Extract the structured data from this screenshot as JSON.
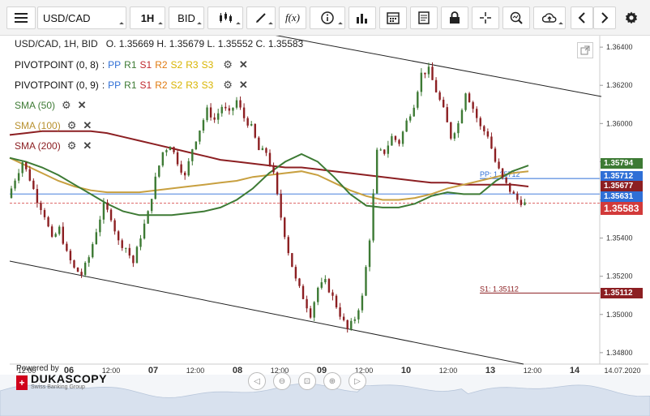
{
  "toolbar": {
    "symbol": "USD/CAD",
    "timeframe": "1H",
    "side": "BID",
    "fx_label": "f(x)"
  },
  "header": {
    "ohlc": "USD/CAD, 1H, BID   O. 1.35669 H. 1.35679 L. 1.35552 C. 1.35583"
  },
  "indicators": [
    {
      "name": "PIVOTPOINT (0, 8)",
      "sep": ":",
      "labels": [
        "PP",
        "R1",
        "S1",
        "R2",
        "S2",
        "R3",
        "S3"
      ]
    },
    {
      "name": "PIVOTPOINT (0, 9)",
      "sep": ":",
      "labels": [
        "PP",
        "R1",
        "S1",
        "R2",
        "S2",
        "R3",
        "S3"
      ]
    },
    {
      "name": "SMA (50)",
      "color": "#3d7a34"
    },
    {
      "name": "SMA (100)",
      "color": "#c8a040"
    },
    {
      "name": "SMA (200)",
      "color": "#8c1f22"
    }
  ],
  "pivot_label_colors": [
    "#2f6fd6",
    "#3d7a34",
    "#c0282d",
    "#e07a10",
    "#d8b400",
    "#d8b400",
    "#d8b400"
  ],
  "chart_annotations": {
    "pp_label": "PP: 1.35712",
    "s1_label": "S1: 1.35112"
  },
  "price_badges": [
    {
      "value": "1.35794",
      "color": "#3d7a34"
    },
    {
      "value": "1.35712",
      "color": "#2f6fd6"
    },
    {
      "value": "1.35677",
      "color": "#8c1f22"
    },
    {
      "value": "1.35631",
      "color": "#2f6fd6"
    },
    {
      "value": "1.35583",
      "color": "#d23a3a"
    },
    {
      "value": "1.35112",
      "color": "#8c1f22"
    }
  ],
  "powered_by": "Powered by",
  "brand": {
    "name": "DUKASCOPY",
    "tagline": "Swiss Banking Group",
    "cross": "+"
  },
  "chart_data": {
    "type": "candlestick",
    "title": "USD/CAD, 1H, BID",
    "ohlc_last": {
      "open": 1.35669,
      "high": 1.35679,
      "low": 1.35552,
      "close": 1.35583
    },
    "y_ticks": [
      "1.36400",
      "1.36200",
      "1.36000",
      "1.35800",
      "1.35600",
      "1.35400",
      "1.35200",
      "1.35000",
      "1.34800"
    ],
    "ylim": [
      1.3474,
      1.3646
    ],
    "x_ticks": [
      "12:00",
      "06",
      "12:00",
      "07",
      "12:00",
      "08",
      "12:00",
      "09",
      "12:00",
      "10",
      "12:00",
      "13",
      "12:00",
      "14",
      "14.07.2020"
    ],
    "x_tick_days": [
      false,
      true,
      false,
      true,
      false,
      true,
      false,
      true,
      false,
      true,
      false,
      true,
      false,
      true,
      false
    ],
    "levels": {
      "pp": 1.35712,
      "s1": 1.35112,
      "last": 1.35583,
      "pp_prev": 1.35631
    },
    "price_path": [
      1.3561,
      1.3571,
      1.358,
      1.3571,
      1.356,
      1.3552,
      1.3539,
      1.3545,
      1.3532,
      1.3524,
      1.3521,
      1.353,
      1.3544,
      1.3557,
      1.3551,
      1.3538,
      1.3535,
      1.3527,
      1.3541,
      1.3553,
      1.3571,
      1.3585,
      1.3589,
      1.358,
      1.3572,
      1.3587,
      1.3597,
      1.3607,
      1.3602,
      1.3609,
      1.3605,
      1.3612,
      1.3603,
      1.3598,
      1.3586,
      1.3585,
      1.3573,
      1.3551,
      1.3533,
      1.3518,
      1.3509,
      1.35,
      1.3514,
      1.3517,
      1.3509,
      1.35,
      1.3492,
      1.3498,
      1.3509,
      1.354,
      1.3585,
      1.3585,
      1.3593,
      1.359,
      1.3601,
      1.361,
      1.3626,
      1.3628,
      1.3617,
      1.3607,
      1.3593,
      1.36,
      1.3617,
      1.3608,
      1.3598,
      1.3594,
      1.358,
      1.3571,
      1.3565,
      1.356,
      1.3558
    ],
    "sma50": [
      1.3582,
      1.358,
      1.3577,
      1.3573,
      1.3568,
      1.3563,
      1.3558,
      1.3554,
      1.3552,
      1.3552,
      1.3552,
      1.3553,
      1.3554,
      1.3556,
      1.356,
      1.3566,
      1.3574,
      1.358,
      1.3584,
      1.358,
      1.3572,
      1.3563,
      1.3557,
      1.3556,
      1.3556,
      1.3558,
      1.3562,
      1.3564,
      1.3563,
      1.3563,
      1.357,
      1.3575,
      1.3578
    ],
    "sma100": [
      1.3582,
      1.3578,
      1.3574,
      1.357,
      1.3567,
      1.3565,
      1.3564,
      1.3564,
      1.3564,
      1.3565,
      1.3566,
      1.3567,
      1.3568,
      1.3569,
      1.357,
      1.3572,
      1.3573,
      1.3574,
      1.3575,
      1.3573,
      1.3569,
      1.3565,
      1.3562,
      1.356,
      1.356,
      1.3561,
      1.3563,
      1.3566,
      1.3568,
      1.357,
      1.3572,
      1.3574,
      1.3575
    ],
    "sma200": [
      1.3594,
      1.3595,
      1.3596,
      1.3596,
      1.3596,
      1.3596,
      1.3595,
      1.3593,
      1.3591,
      1.3589,
      1.3587,
      1.3585,
      1.3583,
      1.3581,
      1.358,
      1.3579,
      1.3578,
      1.3577,
      1.3577,
      1.3576,
      1.3575,
      1.3574,
      1.3573,
      1.3572,
      1.3571,
      1.357,
      1.3569,
      1.3569,
      1.3568,
      1.3568,
      1.3568,
      1.3568,
      1.3567
    ]
  }
}
